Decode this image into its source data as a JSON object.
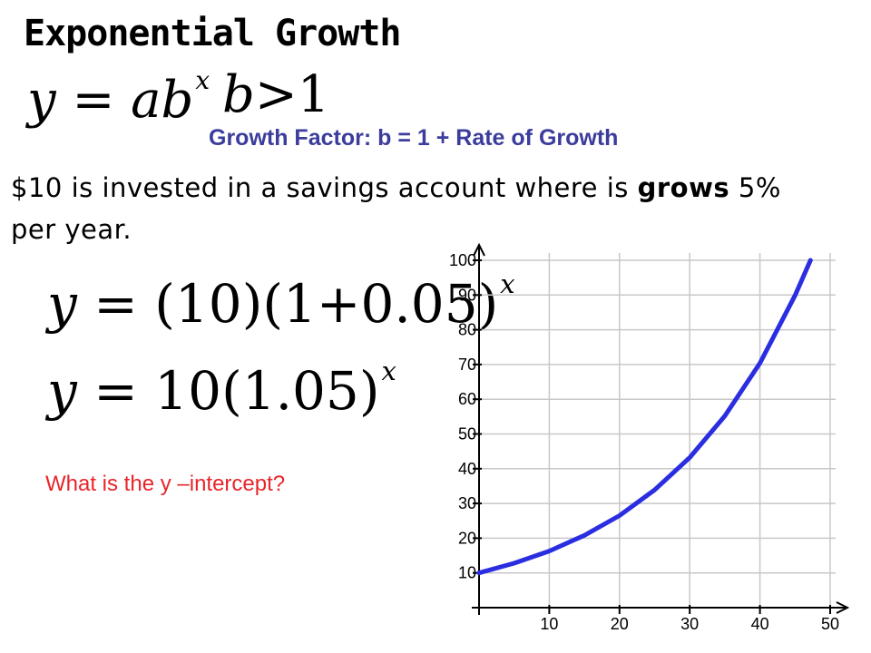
{
  "slide": {
    "title": "Exponential Growth",
    "formula_general": {
      "lhs": "y",
      "base": "ab",
      "exponent": "x"
    },
    "condition": {
      "var": "b",
      "op": ">1"
    },
    "growth_factor_text": "Growth Factor: b = 1 + Rate of Growth",
    "problem": {
      "pre": "$10 is invested in a savings account where is ",
      "emph": "grows",
      "post": " 5% per year."
    },
    "formula_specific_1": {
      "lhs": "y",
      "base": "(10)(1+0.05)",
      "exponent": "x"
    },
    "formula_specific_2": {
      "lhs": "y",
      "base": "10(1.05)",
      "exponent": "x"
    },
    "question": "What is the y –intercept?"
  },
  "colors": {
    "title": "#000000",
    "growth_factor": "#3b3c9c",
    "question": "#e8252a",
    "curve": "#2a2ee0",
    "grid": "#c8c8c8"
  },
  "chart_data": {
    "type": "line",
    "title": "",
    "xlabel": "",
    "ylabel": "",
    "xlim": [
      0,
      50
    ],
    "ylim": [
      0,
      100
    ],
    "x_ticks": [
      10,
      20,
      30,
      40,
      50
    ],
    "y_ticks": [
      10,
      20,
      30,
      40,
      50,
      60,
      70,
      80,
      90,
      100
    ],
    "grid": true,
    "series": [
      {
        "x": [
          0,
          5,
          10,
          15,
          20,
          25,
          30,
          35,
          40,
          45,
          47.2
        ],
        "values": [
          10,
          12.8,
          16.3,
          20.8,
          26.5,
          33.9,
          43.2,
          55.2,
          70.4,
          89.9,
          100
        ]
      }
    ]
  }
}
